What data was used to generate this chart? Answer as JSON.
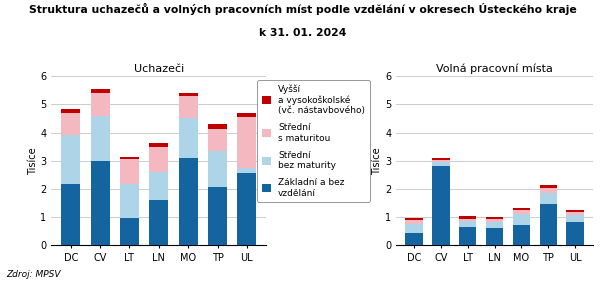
{
  "title_line1": "Struktura uchazečů a volných pracovních míst podle vzdělání v okresech Ústeckého kraje",
  "title_line2": "k 31. 01. 2024",
  "subtitle_left": "Uchazeči",
  "subtitle_right": "Volná pracovní místa",
  "ylabel": "Tisíce",
  "source": "Zdroj: MPSV",
  "categories": [
    "DC",
    "CV",
    "LT",
    "LN",
    "MO",
    "TP",
    "UL"
  ],
  "uchazeči": {
    "zakladni": [
      2.18,
      3.0,
      0.96,
      1.62,
      3.1,
      2.08,
      2.58
    ],
    "stredni_bm": [
      1.75,
      1.6,
      1.2,
      0.98,
      1.4,
      1.28,
      0.18
    ],
    "stredni_sm": [
      0.75,
      0.8,
      0.9,
      0.9,
      0.8,
      0.78,
      1.78
    ],
    "vyssi": [
      0.15,
      0.15,
      0.09,
      0.14,
      0.1,
      0.16,
      0.16
    ]
  },
  "volna": {
    "zakladni": [
      0.44,
      2.82,
      0.65,
      0.62,
      0.72,
      1.45,
      0.82
    ],
    "stredni_bm": [
      0.3,
      0.15,
      0.2,
      0.2,
      0.4,
      0.4,
      0.25
    ],
    "stredni_sm": [
      0.15,
      0.06,
      0.1,
      0.1,
      0.12,
      0.18,
      0.12
    ],
    "vyssi": [
      0.08,
      0.07,
      0.08,
      0.07,
      0.08,
      0.12,
      0.08
    ]
  },
  "colors": {
    "zakladni": "#1464a0",
    "stredni_bm": "#aed4e8",
    "stredni_sm": "#f4b8c0",
    "vyssi": "#c00000"
  },
  "legend_labels": [
    "Vyšší\na vysokoškolské\n(vč. nástavbového)",
    "Střední\ns maturitou",
    "Střední\nbez maturity",
    "Základní a bez\nvzdělání"
  ],
  "ylim": [
    0,
    6
  ],
  "yticks": [
    0,
    1,
    2,
    3,
    4,
    5,
    6
  ],
  "background_color": "#ffffff",
  "grid_color": "#b8b8b8"
}
